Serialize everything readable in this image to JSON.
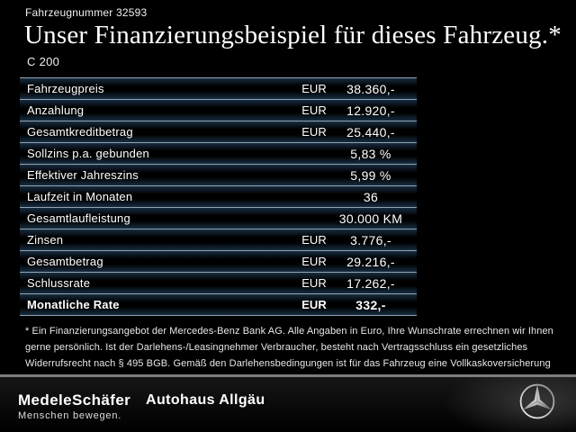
{
  "header": {
    "vehicle_number": "Fahrzeugnummer 32593",
    "title": "Unser Finanzierungsbeispiel für dieses Fahrzeug.*",
    "model": "C 200"
  },
  "table": {
    "rows": [
      {
        "label": "Fahrzeugpreis",
        "currency": "EUR",
        "value": "38.360,-"
      },
      {
        "label": "Anzahlung",
        "currency": "EUR",
        "value": "12.920,-"
      },
      {
        "label": "Gesamtkreditbetrag",
        "currency": "EUR",
        "value": "25.440,-"
      },
      {
        "label": "Sollzins p.a. gebunden",
        "currency": "",
        "value": "5,83 %"
      },
      {
        "label": "Effektiver Jahreszins",
        "currency": "",
        "value": "5,99 %"
      },
      {
        "label": "Laufzeit in Monaten",
        "currency": "",
        "value": "36"
      },
      {
        "label": "Gesamtlaufleistung",
        "currency": "",
        "value": "30.000 KM"
      },
      {
        "label": "Zinsen",
        "currency": "EUR",
        "value": "3.776,-"
      },
      {
        "label": "Gesamtbetrag",
        "currency": "EUR",
        "value": "29.216,-"
      },
      {
        "label": "Schlussrate",
        "currency": "EUR",
        "value": "17.262,-"
      },
      {
        "label": "Monatliche Rate",
        "currency": "EUR",
        "value": "332,-",
        "bold": true
      }
    ]
  },
  "footnote": {
    "text": "* Ein Finanzierungsangebot der Mercedes-Benz Bank AG. Alle Angaben in Euro, Ihre Wunschrate errechnen wir Ihnen gerne persönlich. Ist der Darlehens-/Leasingnehmer Verbraucher, besteht nach Vertragsschluss ein gesetzliches Widerrufsrecht nach § 495 BGB. Gemäß den Darlehensbedingungen ist für das Fahrzeug eine Vollkaskoversicherung abzuschließen."
  },
  "footer": {
    "dealer_logo": "MedeleSchäfer",
    "dealer_tagline": "Menschen bewegen.",
    "dealer_secondary": "Autohaus Allgäu",
    "brand_icon": "mercedes-star-icon"
  },
  "colors": {
    "background": "#000000",
    "text": "#ffffff",
    "table_line": "#93a2ad",
    "table_line_glow": "#2a5276",
    "footer_divider": "#7d7d7d"
  }
}
